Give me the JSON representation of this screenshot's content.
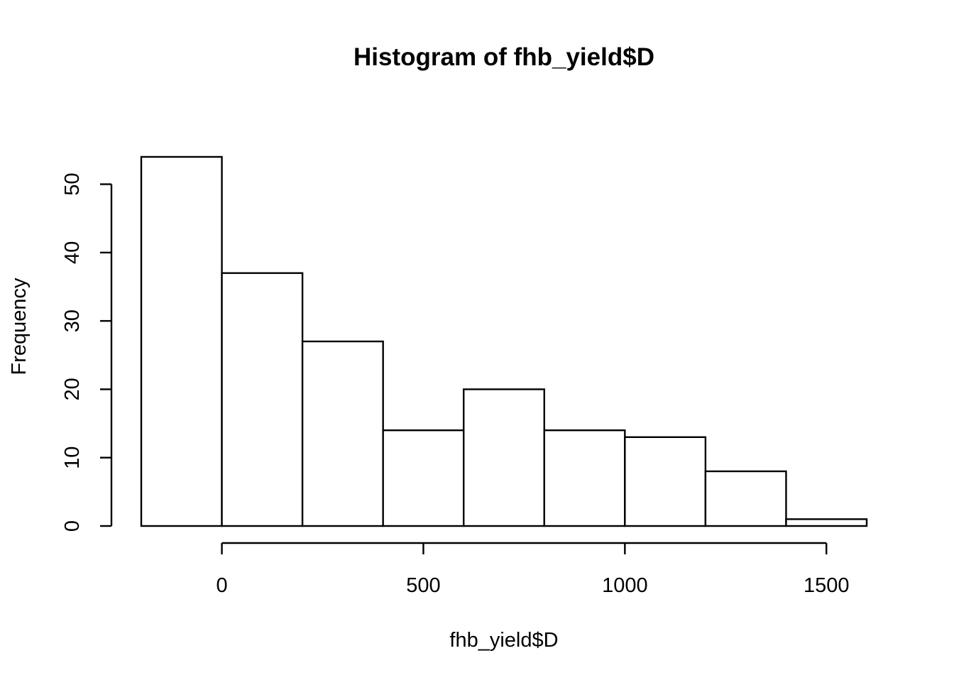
{
  "chart_data": {
    "type": "bar",
    "title": "Histogram of fhb_yield$D",
    "xlabel": "fhb_yield$D",
    "ylabel": "Frequency",
    "bins": [
      {
        "start": -200,
        "end": 0,
        "count": 54
      },
      {
        "start": 0,
        "end": 200,
        "count": 37
      },
      {
        "start": 200,
        "end": 400,
        "count": 27
      },
      {
        "start": 400,
        "end": 600,
        "count": 14
      },
      {
        "start": 600,
        "end": 800,
        "count": 20
      },
      {
        "start": 800,
        "end": 1000,
        "count": 14
      },
      {
        "start": 1000,
        "end": 1200,
        "count": 13
      },
      {
        "start": 1200,
        "end": 1400,
        "count": 8
      },
      {
        "start": 1400,
        "end": 1600,
        "count": 1
      }
    ],
    "xticks": [
      {
        "value": 0,
        "label": "0"
      },
      {
        "value": 500,
        "label": "500"
      },
      {
        "value": 1000,
        "label": "1000"
      },
      {
        "value": 1500,
        "label": "1500"
      }
    ],
    "yticks": [
      {
        "value": 0,
        "label": "0"
      },
      {
        "value": 10,
        "label": "10"
      },
      {
        "value": 20,
        "label": "20"
      },
      {
        "value": 30,
        "label": "30"
      },
      {
        "value": 40,
        "label": "40"
      },
      {
        "value": 50,
        "label": "50"
      }
    ],
    "xlim": [
      -200,
      1600
    ],
    "ylim": [
      0,
      54
    ],
    "grid": false
  }
}
